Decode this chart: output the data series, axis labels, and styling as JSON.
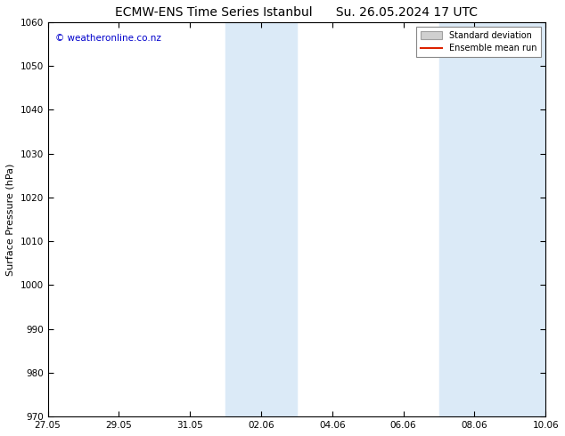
{
  "title_left": "ECMW-ENS Time Series Istanbul",
  "title_right": "Su. 26.05.2024 17 UTC",
  "ylabel": "Surface Pressure (hPa)",
  "ylim": [
    970,
    1060
  ],
  "yticks": [
    970,
    980,
    990,
    1000,
    1010,
    1020,
    1030,
    1040,
    1050,
    1060
  ],
  "xlabel_ticks": [
    "27.05",
    "29.05",
    "31.05",
    "02.06",
    "04.06",
    "06.06",
    "08.06",
    "10.06"
  ],
  "tick_positions": [
    0,
    2,
    4,
    6,
    8,
    10,
    12,
    14
  ],
  "watermark": "© weatheronline.co.nz",
  "watermark_color": "#0000cc",
  "bg_color": "#ffffff",
  "plot_bg_color": "#ffffff",
  "shaded_band1_start": 5,
  "shaded_band1_end": 7,
  "shaded_band2_start": 11,
  "shaded_band2_end": 14,
  "shaded_color": "#dbeaf7",
  "legend_std_label": "Standard deviation",
  "legend_mean_label": "Ensemble mean run",
  "legend_std_facecolor": "#d0d0d0",
  "legend_std_edgecolor": "#a0a0a0",
  "legend_mean_color": "#dd2200",
  "title_fontsize": 10,
  "tick_fontsize": 7.5,
  "axis_label_fontsize": 8,
  "watermark_fontsize": 7.5,
  "xlim": [
    0,
    14
  ]
}
